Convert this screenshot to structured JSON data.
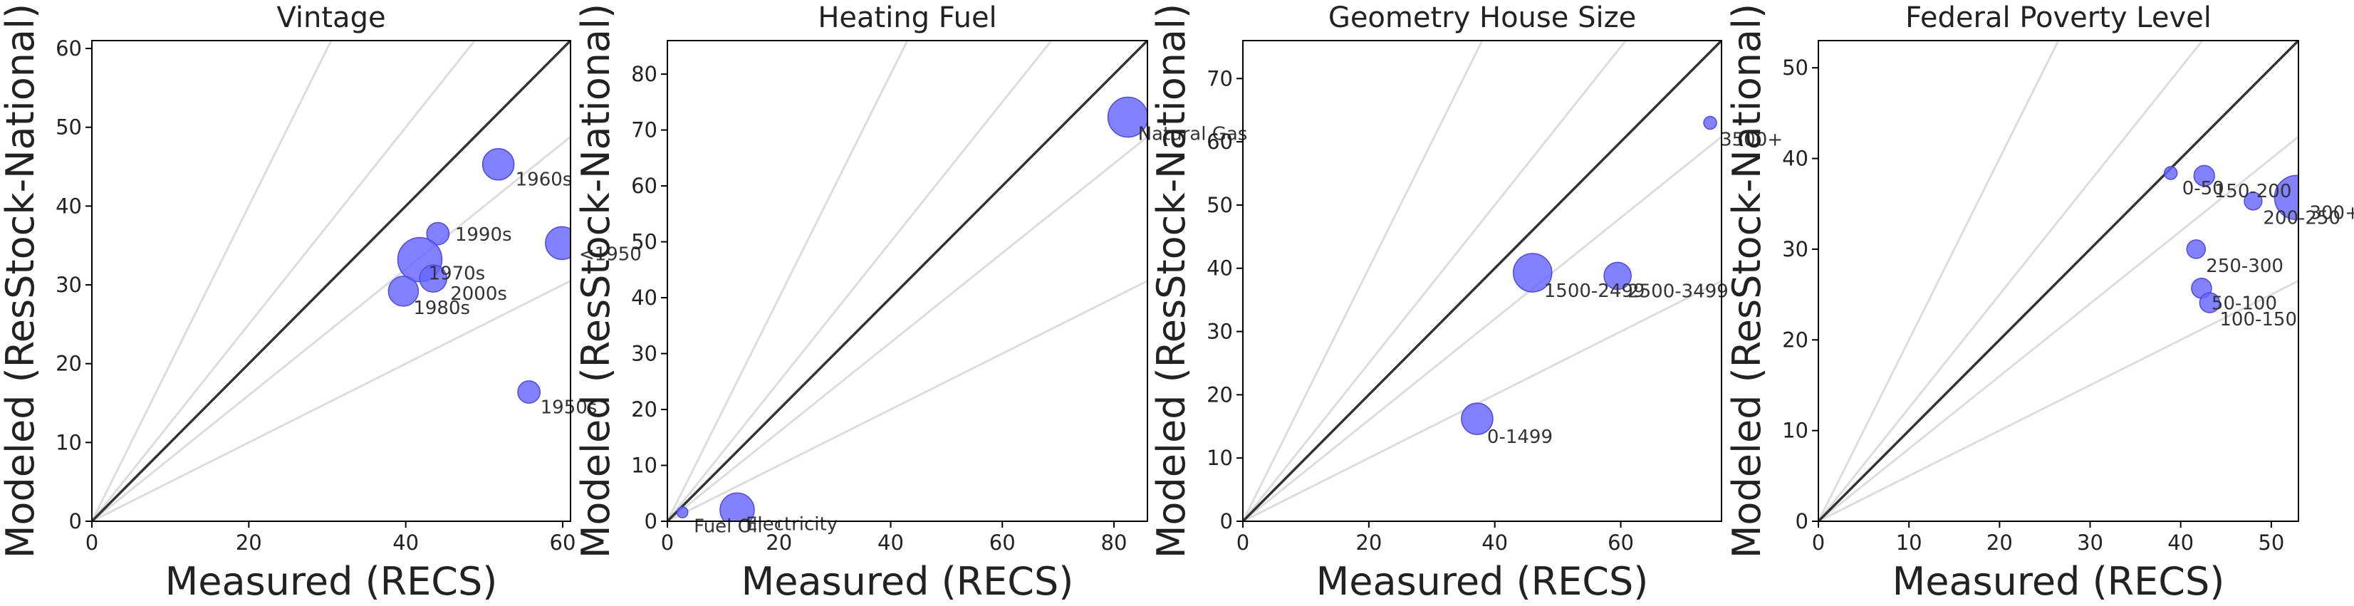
{
  "chart_data": [
    {
      "type": "scatter",
      "title": "Vintage",
      "xlabel": "Measured (RECS)",
      "ylabel": "Modeled (ResStock-National)",
      "xlim": [
        0,
        61
      ],
      "ylim": [
        0,
        61
      ],
      "xticks": [
        "0",
        "20",
        "40",
        "60"
      ],
      "yticks": [
        "0",
        "10",
        "20",
        "30",
        "40",
        "50",
        "60"
      ],
      "points": [
        {
          "label": "1960s",
          "x": 51.8,
          "y": 45.3,
          "size": 1.1
        },
        {
          "label": "1990s",
          "x": 44.1,
          "y": 36.5,
          "size": 0.78
        },
        {
          "label": "<1950",
          "x": 59.9,
          "y": 35.3,
          "size": 1.15
        },
        {
          "label": "1970s",
          "x": 41.8,
          "y": 33.2,
          "size": 1.55
        },
        {
          "label": "2000s",
          "x": 43.5,
          "y": 30.8,
          "size": 0.95
        },
        {
          "label": "1980s",
          "x": 39.7,
          "y": 29.2,
          "size": 1.05
        },
        {
          "label": "1950s",
          "x": 55.7,
          "y": 16.4,
          "size": 0.78
        }
      ]
    },
    {
      "type": "scatter",
      "title": "Heating Fuel",
      "xlabel": "Measured (RECS)",
      "ylabel": "Modeled (ResStock-National)",
      "xlim": [
        0,
        86
      ],
      "ylim": [
        0,
        86
      ],
      "xticks": [
        "0",
        "20",
        "40",
        "60",
        "80"
      ],
      "yticks": [
        "0",
        "10",
        "20",
        "30",
        "40",
        "50",
        "60",
        "70",
        "80"
      ],
      "points": [
        {
          "label": "Natural Gas",
          "x": 82.5,
          "y": 72.3,
          "size": 1.4
        },
        {
          "label": "Fuel Oil",
          "x": 2.7,
          "y": 1.6,
          "size": 0.38
        },
        {
          "label": "Electricity",
          "x": 12.5,
          "y": 2.0,
          "size": 1.2
        }
      ]
    },
    {
      "type": "scatter",
      "title": "Geometry House Size",
      "xlabel": "Measured (RECS)",
      "ylabel": "Modeled (ResStock-National)",
      "xlim": [
        0,
        76
      ],
      "ylim": [
        0,
        76
      ],
      "xticks": [
        "0",
        "20",
        "40",
        "60"
      ],
      "yticks": [
        "0",
        "10",
        "20",
        "30",
        "40",
        "50",
        "60",
        "70"
      ],
      "points": [
        {
          "label": "3500+",
          "x": 74.2,
          "y": 63.0,
          "size": 0.45
        },
        {
          "label": "1500-2499",
          "x": 46.0,
          "y": 39.3,
          "size": 1.35
        },
        {
          "label": "2500-3499",
          "x": 59.5,
          "y": 38.8,
          "size": 0.95
        },
        {
          "label": "0-1499",
          "x": 37.2,
          "y": 16.2,
          "size": 1.1
        }
      ]
    },
    {
      "type": "scatter",
      "title": "Federal Poverty Level",
      "xlabel": "Measured (RECS)",
      "ylabel": "Modeled (ResStock-National)",
      "xlim": [
        0,
        53
      ],
      "ylim": [
        0,
        53
      ],
      "xticks": [
        "0",
        "10",
        "20",
        "30",
        "40",
        "50"
      ],
      "yticks": [
        "0",
        "10",
        "20",
        "30",
        "40",
        "50"
      ],
      "points": [
        {
          "label": "0-50",
          "x": 38.9,
          "y": 38.4,
          "size": 0.45
        },
        {
          "label": "150-200",
          "x": 42.6,
          "y": 38.1,
          "size": 0.72
        },
        {
          "label": "200-250",
          "x": 48.0,
          "y": 35.3,
          "size": 0.62
        },
        {
          "label": "300+",
          "x": 52.8,
          "y": 35.7,
          "size": 1.55
        },
        {
          "label": "250-300",
          "x": 41.7,
          "y": 30.0,
          "size": 0.65
        },
        {
          "label": "50-100",
          "x": 42.3,
          "y": 25.7,
          "size": 0.7
        },
        {
          "label": "100-150",
          "x": 43.2,
          "y": 24.1,
          "size": 0.7
        }
      ]
    }
  ],
  "style": {
    "point_color": "#6666ff",
    "point_edge": "#4a4aee",
    "identity_line": "#333333",
    "ratio_lines": "#dddddd",
    "text_color": "#222222",
    "label_color": "#333333"
  }
}
